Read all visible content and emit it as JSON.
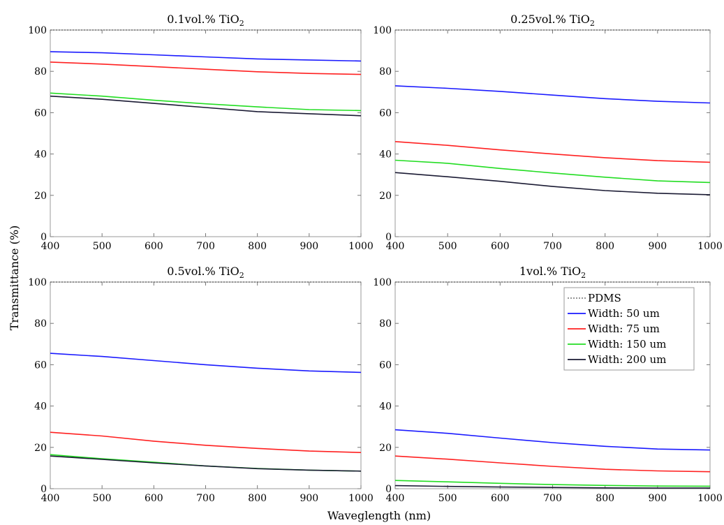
{
  "figure": {
    "ylabel": "Transmittance (%)",
    "xlabel": "Waveglength (nm)"
  },
  "legend": {
    "placement": "top-right of bottom-right panel",
    "entries": [
      {
        "label": "PDMS",
        "color": "#555555",
        "style": "dotted"
      },
      {
        "label": "Width: 50 um",
        "color": "#1a1aff",
        "style": "solid"
      },
      {
        "label": "Width: 75 um",
        "color": "#ff2020",
        "style": "solid"
      },
      {
        "label": "Width: 150 um",
        "color": "#22dd22",
        "style": "solid"
      },
      {
        "label": "Width: 200 um",
        "color": "#1a1a33",
        "style": "solid"
      }
    ]
  },
  "chart_data": [
    {
      "type": "line",
      "title_main": "0.1vol.% TiO",
      "title_sub": "2",
      "xlim": [
        400,
        1000
      ],
      "ylim": [
        0,
        100
      ],
      "xticks": [
        "400",
        "500",
        "600",
        "700",
        "800",
        "900",
        "1000"
      ],
      "yticks": [
        "0",
        "20",
        "40",
        "60",
        "80",
        "100"
      ],
      "x": [
        400,
        500,
        600,
        700,
        800,
        900,
        1000
      ],
      "series": [
        {
          "name": "PDMS",
          "values": [
            100,
            100,
            100,
            100,
            100,
            100,
            100
          ]
        },
        {
          "name": "Width: 50 um",
          "values": [
            89.5,
            89,
            88,
            87,
            86,
            85.5,
            85
          ]
        },
        {
          "name": "Width: 75 um",
          "values": [
            84.5,
            83.5,
            82.3,
            81,
            79.8,
            79,
            78.5
          ]
        },
        {
          "name": "Width: 150 um",
          "values": [
            69.5,
            68,
            66,
            64.3,
            62.8,
            61.5,
            61
          ]
        },
        {
          "name": "Width: 200 um",
          "values": [
            68,
            66.5,
            64.5,
            62.5,
            60.5,
            59.5,
            58.5
          ]
        }
      ]
    },
    {
      "type": "line",
      "title_main": "0.25vol.% TiO",
      "title_sub": "2",
      "xlim": [
        400,
        1000
      ],
      "ylim": [
        0,
        100
      ],
      "xticks": [
        "400",
        "500",
        "600",
        "700",
        "800",
        "900",
        "1000"
      ],
      "yticks": [
        "0",
        "20",
        "40",
        "60",
        "80",
        "100"
      ],
      "x": [
        400,
        500,
        600,
        700,
        800,
        900,
        1000
      ],
      "series": [
        {
          "name": "PDMS",
          "values": [
            100,
            100,
            100,
            100,
            100,
            100,
            100
          ]
        },
        {
          "name": "Width: 50 um",
          "values": [
            73,
            71.8,
            70.3,
            68.5,
            66.8,
            65.5,
            64.7
          ]
        },
        {
          "name": "Width: 75 um",
          "values": [
            46,
            44.2,
            42,
            40,
            38.2,
            36.8,
            36
          ]
        },
        {
          "name": "Width: 150 um",
          "values": [
            37,
            35.5,
            33,
            30.8,
            28.8,
            27,
            26.2
          ]
        },
        {
          "name": "Width: 200 um",
          "values": [
            31,
            29,
            26.8,
            24.3,
            22.3,
            21,
            20.3
          ]
        }
      ]
    },
    {
      "type": "line",
      "title_main": "0.5vol.% TiO",
      "title_sub": "2",
      "xlim": [
        400,
        1000
      ],
      "ylim": [
        0,
        100
      ],
      "xticks": [
        "400",
        "500",
        "600",
        "700",
        "800",
        "900",
        "1000"
      ],
      "yticks": [
        "0",
        "20",
        "40",
        "60",
        "80",
        "100"
      ],
      "x": [
        400,
        500,
        600,
        700,
        800,
        900,
        1000
      ],
      "series": [
        {
          "name": "PDMS",
          "values": [
            100,
            100,
            100,
            100,
            100,
            100,
            100
          ]
        },
        {
          "name": "Width: 50 um",
          "values": [
            65.5,
            64,
            62,
            60,
            58.3,
            57,
            56.3
          ]
        },
        {
          "name": "Width: 75 um",
          "values": [
            27.3,
            25.5,
            23,
            21,
            19.5,
            18.2,
            17.5
          ]
        },
        {
          "name": "Width: 150 um",
          "values": [
            16.5,
            14.5,
            12.8,
            11,
            9.8,
            9,
            8.5
          ]
        },
        {
          "name": "Width: 200 um",
          "values": [
            15.8,
            14.2,
            12.5,
            11,
            9.7,
            9,
            8.5
          ]
        }
      ]
    },
    {
      "type": "line",
      "title_main": "1vol.% TiO",
      "title_sub": "2",
      "xlim": [
        400,
        1000
      ],
      "ylim": [
        0,
        100
      ],
      "xticks": [
        "400",
        "500",
        "600",
        "700",
        "800",
        "900",
        "1000"
      ],
      "yticks": [
        "0",
        "20",
        "40",
        "60",
        "80",
        "100"
      ],
      "x": [
        400,
        500,
        600,
        700,
        800,
        900,
        1000
      ],
      "series": [
        {
          "name": "PDMS",
          "values": [
            100,
            100,
            100,
            100,
            100,
            100,
            100
          ]
        },
        {
          "name": "Width: 50 um",
          "values": [
            28.5,
            26.8,
            24.5,
            22.3,
            20.5,
            19.2,
            18.7
          ]
        },
        {
          "name": "Width: 75 um",
          "values": [
            15.8,
            14.3,
            12.5,
            10.8,
            9.4,
            8.6,
            8.2
          ]
        },
        {
          "name": "Width: 150 um",
          "values": [
            4,
            3.3,
            2.6,
            2.0,
            1.6,
            1.3,
            1.2
          ]
        },
        {
          "name": "Width: 200 um",
          "values": [
            1.5,
            1.1,
            0.8,
            0.6,
            0.4,
            0.3,
            0.3
          ]
        }
      ]
    }
  ]
}
